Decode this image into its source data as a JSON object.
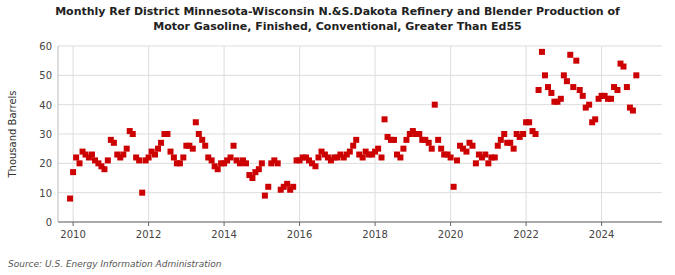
{
  "chart_data": {
    "type": "scatter",
    "title": "Monthly Ref District Minnesota-Wisconsin N.&S.Dakota Refinery and Blender Production of",
    "subtitle": "Motor Gasoline, Finished, Conventional, Greater Than Ed55",
    "y_label": "Thousand Barrels",
    "annotations": [
      "Source: U.S. Energy Information Administration"
    ],
    "color": "#cc0000",
    "marker": "square",
    "grid": true,
    "xlim": [
      2009.6,
      2025.6
    ],
    "xticks": [
      2010,
      2012,
      2014,
      2016,
      2018,
      2020,
      2022,
      2024
    ],
    "ylim": [
      0,
      60
    ],
    "yticks": [
      0,
      10,
      20,
      30,
      40,
      50,
      60
    ],
    "x": [
      2009.92,
      2010.0,
      2010.08,
      2010.17,
      2010.25,
      2010.33,
      2010.42,
      2010.5,
      2010.58,
      2010.67,
      2010.75,
      2010.83,
      2010.92,
      2011.0,
      2011.08,
      2011.17,
      2011.25,
      2011.33,
      2011.42,
      2011.5,
      2011.58,
      2011.67,
      2011.75,
      2011.83,
      2011.92,
      2012.0,
      2012.08,
      2012.17,
      2012.25,
      2012.33,
      2012.42,
      2012.5,
      2012.58,
      2012.67,
      2012.75,
      2012.83,
      2012.92,
      2013.0,
      2013.08,
      2013.17,
      2013.25,
      2013.33,
      2013.42,
      2013.5,
      2013.58,
      2013.67,
      2013.75,
      2013.83,
      2013.92,
      2014.0,
      2014.08,
      2014.17,
      2014.25,
      2014.33,
      2014.42,
      2014.5,
      2014.58,
      2014.67,
      2014.75,
      2014.83,
      2014.92,
      2015.0,
      2015.08,
      2015.17,
      2015.25,
      2015.33,
      2015.42,
      2015.5,
      2015.58,
      2015.67,
      2015.75,
      2015.83,
      2015.92,
      2016.0,
      2016.08,
      2016.17,
      2016.25,
      2016.33,
      2016.42,
      2016.5,
      2016.58,
      2016.67,
      2016.75,
      2016.83,
      2016.92,
      2017.0,
      2017.08,
      2017.17,
      2017.25,
      2017.33,
      2017.42,
      2017.5,
      2017.58,
      2017.67,
      2017.75,
      2017.83,
      2017.92,
      2018.0,
      2018.08,
      2018.17,
      2018.25,
      2018.33,
      2018.42,
      2018.5,
      2018.58,
      2018.67,
      2018.75,
      2018.83,
      2018.92,
      2019.0,
      2019.08,
      2019.17,
      2019.25,
      2019.33,
      2019.42,
      2019.5,
      2019.58,
      2019.67,
      2019.75,
      2019.83,
      2019.92,
      2020.0,
      2020.08,
      2020.17,
      2020.25,
      2020.33,
      2020.42,
      2020.5,
      2020.58,
      2020.67,
      2020.75,
      2020.83,
      2020.92,
      2021.0,
      2021.08,
      2021.17,
      2021.25,
      2021.33,
      2021.42,
      2021.5,
      2021.58,
      2021.67,
      2021.75,
      2021.83,
      2021.92,
      2022.0,
      2022.08,
      2022.17,
      2022.25,
      2022.33,
      2022.42,
      2022.5,
      2022.58,
      2022.67,
      2022.75,
      2022.83,
      2022.92,
      2023.0,
      2023.08,
      2023.17,
      2023.25,
      2023.33,
      2023.42,
      2023.5,
      2023.58,
      2023.67,
      2023.75,
      2023.83,
      2023.92,
      2024.0,
      2024.08,
      2024.17,
      2024.25,
      2024.33,
      2024.42,
      2024.5,
      2024.58,
      2024.67,
      2024.75,
      2024.83,
      2024.92
    ],
    "values": [
      8,
      17,
      22,
      20,
      24,
      23,
      22,
      23,
      21,
      20,
      19,
      18,
      21,
      28,
      27,
      23,
      22,
      23,
      25,
      31,
      30,
      22,
      21,
      10,
      21,
      22,
      24,
      23,
      25,
      27,
      30,
      30,
      24,
      22,
      20,
      20,
      22,
      26,
      26,
      25,
      34,
      30,
      28,
      26,
      22,
      21,
      19,
      18,
      20,
      20,
      21,
      22,
      26,
      21,
      20,
      21,
      20,
      16,
      15,
      17,
      18,
      20,
      9,
      12,
      20,
      21,
      20,
      11,
      12,
      13,
      11,
      12,
      21,
      21,
      22,
      22,
      21,
      20,
      19,
      22,
      24,
      23,
      22,
      21,
      22,
      22,
      23,
      22,
      23,
      24,
      26,
      28,
      23,
      22,
      24,
      23,
      23,
      24,
      25,
      22,
      35,
      29,
      28,
      28,
      23,
      22,
      25,
      28,
      30,
      31,
      30,
      30,
      28,
      28,
      27,
      25,
      40,
      28,
      25,
      23,
      23,
      22,
      12,
      21,
      26,
      25,
      24,
      27,
      26,
      20,
      23,
      22,
      23,
      20,
      22,
      22,
      26,
      28,
      30,
      27,
      27,
      25,
      30,
      29,
      30,
      34,
      34,
      31,
      30,
      45,
      58,
      50,
      46,
      44,
      41,
      41,
      42,
      50,
      48,
      57,
      46,
      55,
      45,
      43,
      39,
      40,
      34,
      35,
      42,
      43,
      43,
      42,
      42,
      46,
      45,
      54,
      53,
      46,
      39,
      38,
      50
    ]
  }
}
